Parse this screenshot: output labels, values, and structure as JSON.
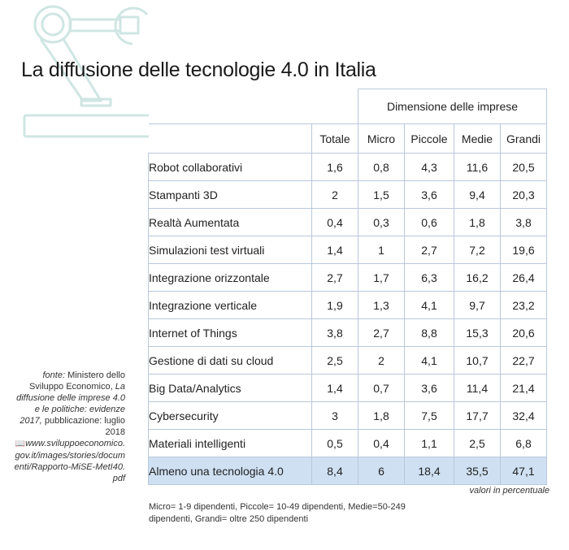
{
  "title": "La diffusione delle tecnologie 4.0 in Italia",
  "table": {
    "group_header": "Dimensione delle imprese",
    "columns": [
      "Totale",
      "Micro",
      "Piccole",
      "Medie",
      "Grandi"
    ],
    "rows": [
      {
        "label": "Robot collaborativi",
        "values": [
          "1,6",
          "0,8",
          "4,3",
          "11,6",
          "20,5"
        ]
      },
      {
        "label": "Stampanti 3D",
        "values": [
          "2",
          "1,5",
          "3,6",
          "9,4",
          "20,3"
        ]
      },
      {
        "label": "Realtà Aumentata",
        "values": [
          "0,4",
          "0,3",
          "0,6",
          "1,8",
          "3,8"
        ]
      },
      {
        "label": "Simulazioni test virtuali",
        "values": [
          "1,4",
          "1",
          "2,7",
          "7,2",
          "19,6"
        ]
      },
      {
        "label": "Integrazione orizzontale",
        "values": [
          "2,7",
          "1,7",
          "6,3",
          "16,2",
          "26,4"
        ]
      },
      {
        "label": "Integrazione verticale",
        "values": [
          "1,9",
          "1,3",
          "4,1",
          "9,7",
          "23,2"
        ]
      },
      {
        "label": "Internet of Things",
        "values": [
          "3,8",
          "2,7",
          "8,8",
          "15,3",
          "20,6"
        ]
      },
      {
        "label": "Gestione di dati su cloud",
        "values": [
          "2,5",
          "2",
          "4,1",
          "10,7",
          "22,7"
        ]
      },
      {
        "label": "Big Data/Analytics",
        "values": [
          "1,4",
          "0,7",
          "3,6",
          "11,4",
          "21,4"
        ]
      },
      {
        "label": "Cybersecurity",
        "values": [
          "3",
          "1,8",
          "7,5",
          "17,7",
          "32,4"
        ]
      },
      {
        "label": "Materiali intelligenti",
        "values": [
          "0,5",
          "0,4",
          "1,1",
          "2,5",
          "6,8"
        ]
      },
      {
        "label": "Almeno una tecnologia 4.0",
        "values": [
          "8,4",
          "6",
          "18,4",
          "35,5",
          "47,1"
        ]
      }
    ]
  },
  "source": {
    "prefix": "fonte:",
    "org": "Ministero dello Sviluppo Economico,",
    "report": "La diffusione delle imprese 4.0 e le politiche: evidenze 2017,",
    "date": "pubblicazione: luglio 2018",
    "url_icon": "book-icon",
    "url": "www.sviluppoeconomico.gov.it/images/stories/documenti/Rapporto-MiSE-MetI40.pdf"
  },
  "unit_note": "valori in percentuale",
  "legend": "Micro= 1-9 dipendenti, Piccole= 10-49 dipendenti, Medie=50-249 dipendenti, Grandi= oltre 250  dipendenti",
  "colors": {
    "table_border": "#b9c8dc",
    "total_row_bg": "#cfe0f3",
    "robot_outline": "#cfe6e3"
  }
}
